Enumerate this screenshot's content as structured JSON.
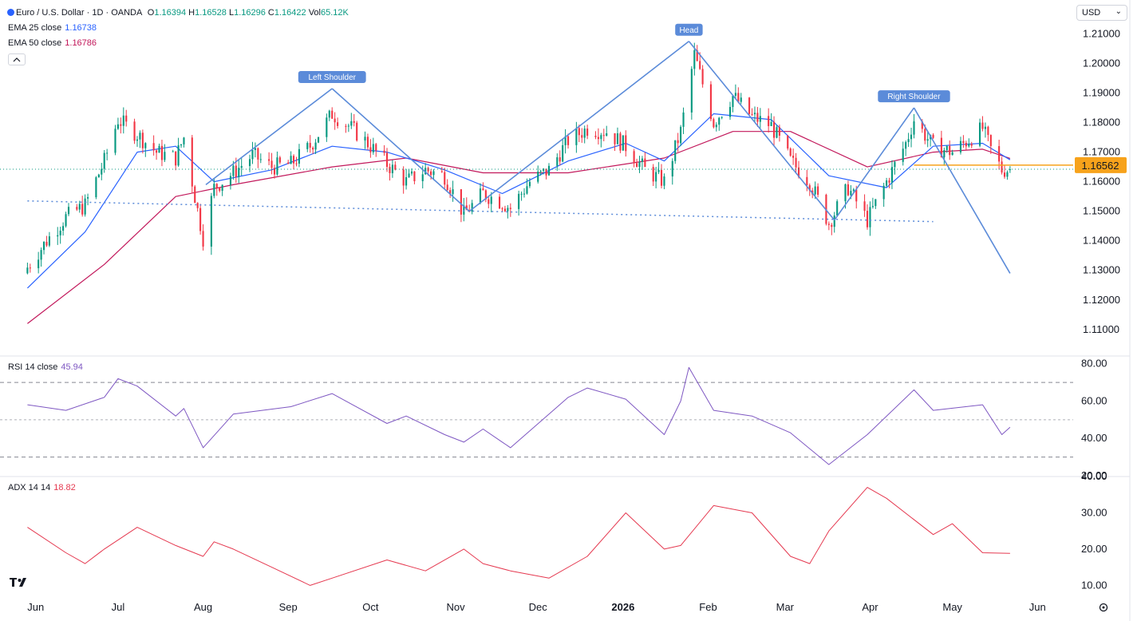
{
  "header": {
    "symbol": "Euro / U.S. Dollar · 1D · OANDA",
    "ohlc": [
      {
        "k": "O",
        "v": "1.16394"
      },
      {
        "k": "H",
        "v": "1.16528"
      },
      {
        "k": "L",
        "v": "1.16296"
      },
      {
        "k": "C",
        "v": "1.16422"
      },
      {
        "k": "Vol",
        "v": "65.12K"
      }
    ],
    "ema25_label": "EMA 25 close",
    "ema25_value": "1.16738",
    "ema50_label": "EMA 50 close",
    "ema50_value": "1.16786",
    "currency": "USD",
    "price_badge": "1.16562"
  },
  "colors": {
    "up": "#089981",
    "down": "#f23645",
    "ema25": "#2962ff",
    "ema50": "#c2185b",
    "annotation": "#5b8bd9",
    "badge": "#f7a21b",
    "rsi": "#7e57c2",
    "adx": "#e53950"
  },
  "icons": [
    "tradingview-logo-icon",
    "settings-gear-icon",
    "chevron-down-icon",
    "collapse-icon"
  ],
  "chart_data": [
    {
      "type": "candlestick",
      "title": "Euro / U.S. Dollar · 1D · OANDA",
      "ylim": [
        1.104,
        1.215
      ],
      "y_ticks": [
        "1.21000",
        "1.20000",
        "1.19000",
        "1.18000",
        "1.17000",
        "1.16000",
        "1.15000",
        "1.14000",
        "1.13000",
        "1.12000",
        "1.11000"
      ],
      "x_ticks": [
        "Jun",
        "Jul",
        "Aug",
        "Sep",
        "Oct",
        "Nov",
        "Dec",
        "2026",
        "Feb",
        "Mar",
        "Apr",
        "May",
        "Jun"
      ],
      "price_path": [
        [
          "2025-05-29",
          1.131
        ],
        [
          "2025-06-05",
          1.14
        ],
        [
          "2025-06-12",
          1.148
        ],
        [
          "2025-06-19",
          1.152
        ],
        [
          "2025-06-26",
          1.167
        ],
        [
          "2025-07-01",
          1.181
        ],
        [
          "2025-07-08",
          1.176
        ],
        [
          "2025-07-15",
          1.17
        ],
        [
          "2025-07-22",
          1.168
        ],
        [
          "2025-07-25",
          1.175
        ],
        [
          "2025-07-29",
          1.155
        ],
        [
          "2025-08-01",
          1.141
        ],
        [
          "2025-08-05",
          1.158
        ],
        [
          "2025-08-12",
          1.163
        ],
        [
          "2025-08-19",
          1.169
        ],
        [
          "2025-08-26",
          1.165
        ],
        [
          "2025-09-02",
          1.166
        ],
        [
          "2025-09-09",
          1.172
        ],
        [
          "2025-09-17",
          1.183
        ],
        [
          "2025-09-23",
          1.179
        ],
        [
          "2025-09-30",
          1.173
        ],
        [
          "2025-10-07",
          1.166
        ],
        [
          "2025-10-14",
          1.16
        ],
        [
          "2025-10-21",
          1.164
        ],
        [
          "2025-10-28",
          1.162
        ],
        [
          "2025-11-04",
          1.149
        ],
        [
          "2025-11-11",
          1.156
        ],
        [
          "2025-11-18",
          1.153
        ],
        [
          "2025-11-21",
          1.151
        ],
        [
          "2025-11-28",
          1.16
        ],
        [
          "2025-12-05",
          1.164
        ],
        [
          "2025-12-12",
          1.174
        ],
        [
          "2025-12-19",
          1.178
        ],
        [
          "2025-12-26",
          1.177
        ],
        [
          "2026-01-02",
          1.172
        ],
        [
          "2026-01-09",
          1.164
        ],
        [
          "2026-01-16",
          1.16
        ],
        [
          "2026-01-22",
          1.177
        ],
        [
          "2026-01-27",
          1.203
        ],
        [
          "2026-02-03",
          1.18
        ],
        [
          "2026-02-10",
          1.189
        ],
        [
          "2026-02-17",
          1.182
        ],
        [
          "2026-02-24",
          1.179
        ],
        [
          "2026-03-03",
          1.167
        ],
        [
          "2026-03-10",
          1.16
        ],
        [
          "2026-03-17",
          1.146
        ],
        [
          "2026-03-24",
          1.158
        ],
        [
          "2026-03-31",
          1.147
        ],
        [
          "2026-04-07",
          1.16
        ],
        [
          "2026-04-14",
          1.173
        ],
        [
          "2026-04-17",
          1.181
        ],
        [
          "2026-04-24",
          1.172
        ],
        [
          "2026-05-01",
          1.17
        ],
        [
          "2026-05-08",
          1.175
        ],
        [
          "2026-05-12",
          1.178
        ],
        [
          "2026-05-15",
          1.171
        ],
        [
          "2026-05-19",
          1.164
        ],
        [
          "2026-05-22",
          1.1642
        ]
      ],
      "ema25_path": [
        [
          "2025-05-29",
          1.124
        ],
        [
          "2025-06-19",
          1.143
        ],
        [
          "2025-07-08",
          1.17
        ],
        [
          "2025-07-22",
          1.172
        ],
        [
          "2025-08-05",
          1.16
        ],
        [
          "2025-08-26",
          1.164
        ],
        [
          "2025-09-17",
          1.172
        ],
        [
          "2025-10-07",
          1.17
        ],
        [
          "2025-10-28",
          1.164
        ],
        [
          "2025-11-18",
          1.156
        ],
        [
          "2025-12-12",
          1.167
        ],
        [
          "2026-01-02",
          1.173
        ],
        [
          "2026-01-16",
          1.167
        ],
        [
          "2026-02-03",
          1.183
        ],
        [
          "2026-02-24",
          1.181
        ],
        [
          "2026-03-17",
          1.162
        ],
        [
          "2026-04-07",
          1.158
        ],
        [
          "2026-04-24",
          1.172
        ],
        [
          "2026-05-12",
          1.173
        ],
        [
          "2026-05-22",
          1.1674
        ]
      ],
      "ema50_path": [
        [
          "2025-05-29",
          1.112
        ],
        [
          "2025-06-26",
          1.132
        ],
        [
          "2025-07-22",
          1.155
        ],
        [
          "2025-08-12",
          1.159
        ],
        [
          "2025-09-17",
          1.165
        ],
        [
          "2025-10-14",
          1.168
        ],
        [
          "2025-11-11",
          1.163
        ],
        [
          "2025-12-12",
          1.163
        ],
        [
          "2026-01-16",
          1.168
        ],
        [
          "2026-02-10",
          1.177
        ],
        [
          "2026-03-03",
          1.177
        ],
        [
          "2026-03-31",
          1.165
        ],
        [
          "2026-04-24",
          1.17
        ],
        [
          "2026-05-12",
          1.171
        ],
        [
          "2026-05-22",
          1.1679
        ]
      ],
      "pattern_lines": [
        [
          [
            "2025-09-17",
            1.1915
          ],
          [
            "2025-11-06",
            1.15
          ]
        ],
        [
          [
            "2025-08-02",
            1.159
          ],
          [
            "2025-09-17",
            1.1915
          ]
        ],
        [
          [
            "2025-11-06",
            1.15
          ],
          [
            "2026-01-25",
            1.2075
          ]
        ],
        [
          [
            "2026-01-25",
            1.2075
          ],
          [
            "2026-03-19",
            1.147
          ]
        ],
        [
          [
            "2026-03-19",
            1.147
          ],
          [
            "2026-04-17",
            1.185
          ]
        ],
        [
          [
            "2026-04-17",
            1.185
          ],
          [
            "2026-05-22",
            1.129
          ]
        ]
      ],
      "neckline": [
        [
          "2025-05-29",
          1.1535
        ],
        [
          "2026-04-24",
          1.1465
        ]
      ],
      "horizontal_level": 1.16562,
      "current_price": 1.16422,
      "annotations": [
        {
          "text": "Left Shoulder",
          "date": "2025-09-17",
          "price": 1.1915
        },
        {
          "text": "Head",
          "date": "2026-01-25",
          "price": 1.2075
        },
        {
          "text": "Right Shoulder",
          "date": "2026-04-17",
          "price": 1.185
        }
      ]
    },
    {
      "type": "line",
      "title": "RSI 14 close",
      "last_value": "45.94",
      "ylim": [
        20,
        82
      ],
      "y_ticks": [
        "80.00",
        "60.00",
        "40.00",
        "20.00"
      ],
      "bands": [
        70,
        50,
        30
      ],
      "series": [
        {
          "values": [
            [
              "2025-05-29",
              58
            ],
            [
              "2025-06-12",
              55
            ],
            [
              "2025-06-26",
              62
            ],
            [
              "2025-07-01",
              72
            ],
            [
              "2025-07-08",
              68
            ],
            [
              "2025-07-22",
              52
            ],
            [
              "2025-07-25",
              56
            ],
            [
              "2025-08-01",
              35
            ],
            [
              "2025-08-12",
              53
            ],
            [
              "2025-09-02",
              57
            ],
            [
              "2025-09-17",
              64
            ],
            [
              "2025-10-07",
              48
            ],
            [
              "2025-10-14",
              52
            ],
            [
              "2025-10-28",
              42
            ],
            [
              "2025-11-04",
              38
            ],
            [
              "2025-11-11",
              45
            ],
            [
              "2025-11-18",
              38
            ],
            [
              "2025-11-21",
              35
            ],
            [
              "2025-12-12",
              62
            ],
            [
              "2025-12-19",
              67
            ],
            [
              "2026-01-02",
              61
            ],
            [
              "2026-01-16",
              42
            ],
            [
              "2026-01-22",
              60
            ],
            [
              "2026-01-25",
              78
            ],
            [
              "2026-02-03",
              55
            ],
            [
              "2026-02-17",
              52
            ],
            [
              "2026-03-03",
              43
            ],
            [
              "2026-03-17",
              26
            ],
            [
              "2026-03-31",
              42
            ],
            [
              "2026-04-17",
              66
            ],
            [
              "2026-04-24",
              55
            ],
            [
              "2026-05-12",
              58
            ],
            [
              "2026-05-19",
              42
            ],
            [
              "2026-05-22",
              45.94
            ]
          ]
        }
      ]
    },
    {
      "type": "line",
      "title": "ADX 14 14",
      "last_value": "18.82",
      "ylim": [
        7,
        40
      ],
      "y_ticks": [
        "40.00",
        "30.00",
        "20.00",
        "10.00"
      ],
      "series": [
        {
          "values": [
            [
              "2025-05-29",
              26
            ],
            [
              "2025-06-12",
              19
            ],
            [
              "2025-06-19",
              16
            ],
            [
              "2025-06-26",
              20
            ],
            [
              "2025-07-08",
              26
            ],
            [
              "2025-07-22",
              21
            ],
            [
              "2025-08-01",
              18
            ],
            [
              "2025-08-05",
              22
            ],
            [
              "2025-08-12",
              20
            ],
            [
              "2025-08-26",
              15
            ],
            [
              "2025-09-09",
              10
            ],
            [
              "2025-09-17",
              12
            ],
            [
              "2025-10-07",
              17
            ],
            [
              "2025-10-21",
              14
            ],
            [
              "2025-11-04",
              20
            ],
            [
              "2025-11-11",
              16
            ],
            [
              "2025-11-21",
              14
            ],
            [
              "2025-12-05",
              12
            ],
            [
              "2025-12-19",
              18
            ],
            [
              "2026-01-02",
              30
            ],
            [
              "2026-01-16",
              20
            ],
            [
              "2026-01-22",
              21
            ],
            [
              "2026-02-03",
              32
            ],
            [
              "2026-02-17",
              30
            ],
            [
              "2026-03-03",
              18
            ],
            [
              "2026-03-10",
              16
            ],
            [
              "2026-03-17",
              25
            ],
            [
              "2026-03-31",
              37
            ],
            [
              "2026-04-07",
              34
            ],
            [
              "2026-04-24",
              24
            ],
            [
              "2026-05-01",
              27
            ],
            [
              "2026-05-12",
              19
            ],
            [
              "2026-05-22",
              18.82
            ]
          ]
        }
      ]
    }
  ]
}
